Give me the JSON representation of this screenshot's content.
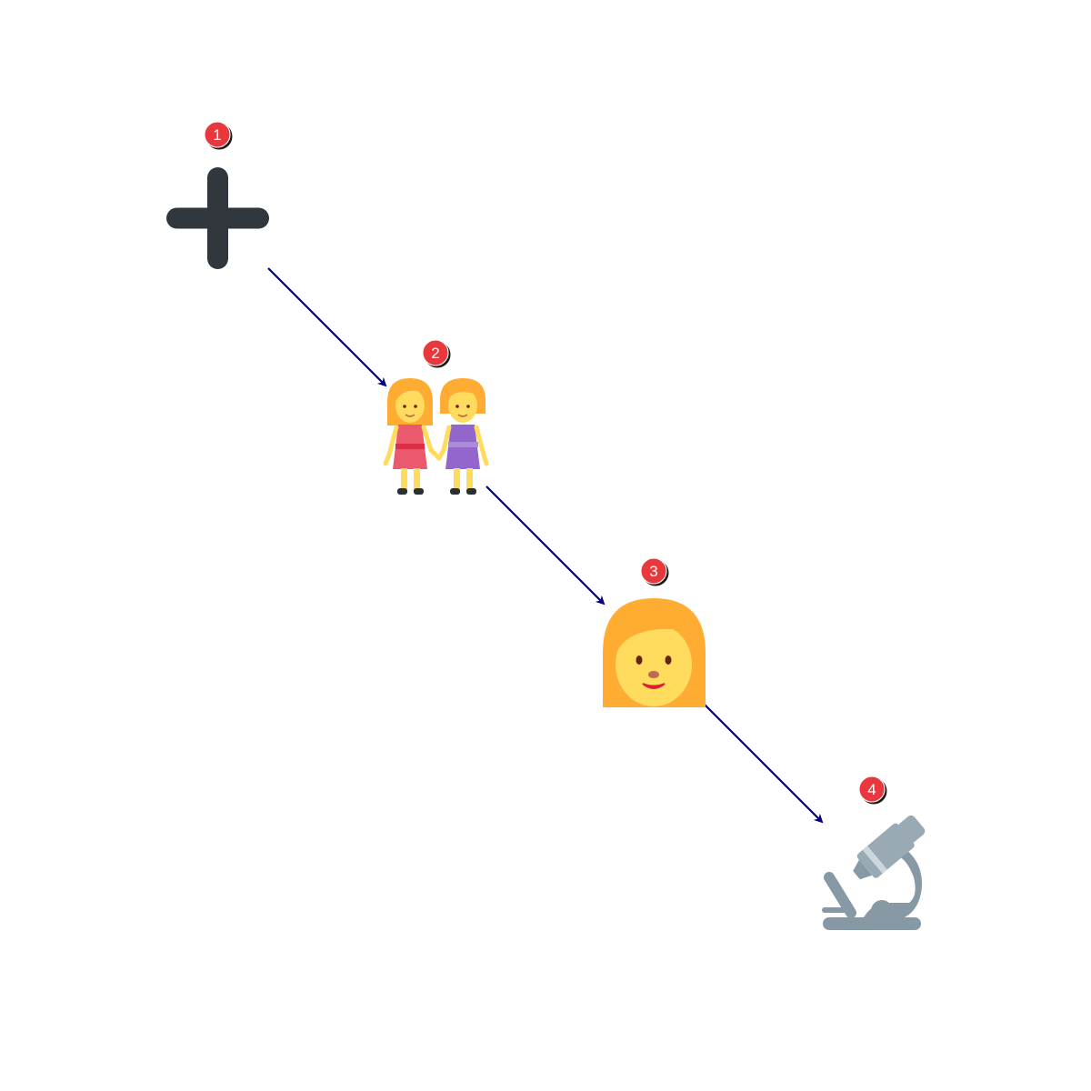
{
  "steps": [
    {
      "number": "1",
      "icon": "plus-icon"
    },
    {
      "number": "2",
      "icon": "two-women-holding-hands-icon"
    },
    {
      "number": "3",
      "icon": "woman-face-icon"
    },
    {
      "number": "4",
      "icon": "microscope-icon"
    }
  ],
  "colors": {
    "arrow": "#00008b",
    "badge": "#e8383d",
    "plus": "#31373d",
    "hair": "#ffac33",
    "skin": "#ffdc5d",
    "dress_red": "#ea596e",
    "dress_purple": "#9266cc",
    "microscope": "#8899a6",
    "microscope_light": "#ccd6dd"
  }
}
